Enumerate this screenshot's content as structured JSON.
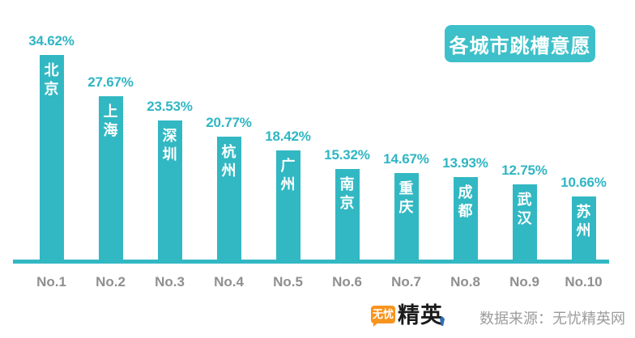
{
  "page": {
    "background": "#ffffff"
  },
  "title_badge": {
    "label": "各城市跳槽意愿",
    "bg_color": "#3dc0c9",
    "text_color": "#ffffff"
  },
  "chart_data": {
    "type": "bar",
    "title": "各城市跳槽意愿",
    "categories": [
      "No.1",
      "No.2",
      "No.3",
      "No.4",
      "No.5",
      "No.6",
      "No.7",
      "No.8",
      "No.9",
      "No.10"
    ],
    "bar_names": [
      "北京",
      "上海",
      "深圳",
      "杭州",
      "广州",
      "南京",
      "重庆",
      "成都",
      "武汉",
      "苏州"
    ],
    "values": [
      34.62,
      27.67,
      23.53,
      20.77,
      18.42,
      15.32,
      14.67,
      13.93,
      12.75,
      10.66
    ],
    "value_labels": [
      "34.62%",
      "27.67%",
      "23.53%",
      "20.77%",
      "18.42%",
      "15.32%",
      "14.67%",
      "13.93%",
      "12.75%",
      "10.66%"
    ],
    "unit": "%",
    "ylim": [
      0,
      40
    ],
    "grid": false,
    "legend": false,
    "bar_color": "#32b8c3",
    "value_label_color": "#2fb6c3",
    "rank_label_color": "#8f8f8f",
    "axis_line_color": "#32b8c3"
  },
  "footer": {
    "logo_badge": "无忧",
    "logo_text": "精英",
    "source_text": "数据来源：无忧精英网",
    "logo_orange": "#f7941e",
    "logo_dark": "#1b1b1b",
    "logo_blue": "#2f6eb5"
  }
}
